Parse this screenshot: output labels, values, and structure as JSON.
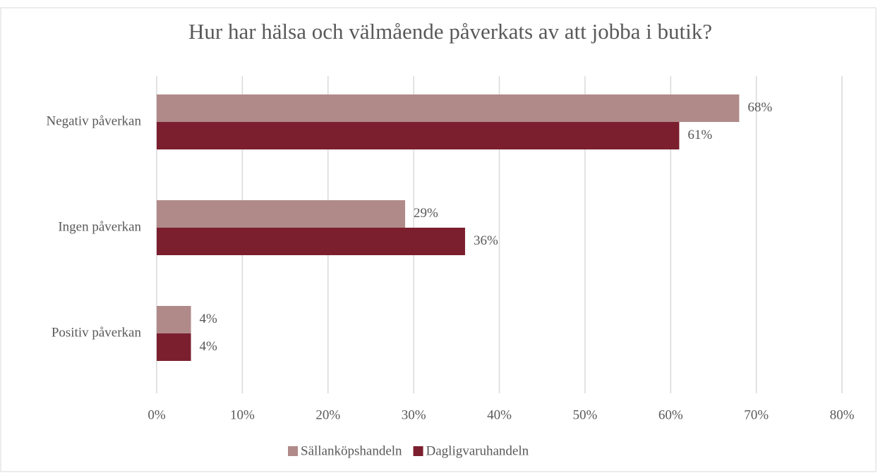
{
  "chart_data": {
    "type": "hbar",
    "title": "Hur har hälsa och välmående påverkats av att jobba i butik?",
    "categories": [
      "Negativ påverkan",
      "Ingen påverkan",
      "Positiv påverkan"
    ],
    "series": [
      {
        "name": "Sällanköpshandeln",
        "color": "#b08a89",
        "values": [
          68,
          29,
          4
        ],
        "value_labels": [
          "68%",
          "29%",
          "4%"
        ]
      },
      {
        "name": "Dagligvaruhandeln",
        "color": "#7b1f2e",
        "values": [
          61,
          36,
          4
        ],
        "value_labels": [
          "61%",
          "36%",
          "4%"
        ]
      }
    ],
    "xlim": [
      0,
      80
    ],
    "xticks": [
      {
        "value": 0,
        "label": "0%"
      },
      {
        "value": 10,
        "label": "10%"
      },
      {
        "value": 20,
        "label": "20%"
      },
      {
        "value": 30,
        "label": "30%"
      },
      {
        "value": 40,
        "label": "40%"
      },
      {
        "value": 50,
        "label": "50%"
      },
      {
        "value": 60,
        "label": "60%"
      },
      {
        "value": 70,
        "label": "70%"
      },
      {
        "value": 80,
        "label": "80%"
      }
    ],
    "grid": true,
    "legend": "bottom"
  }
}
